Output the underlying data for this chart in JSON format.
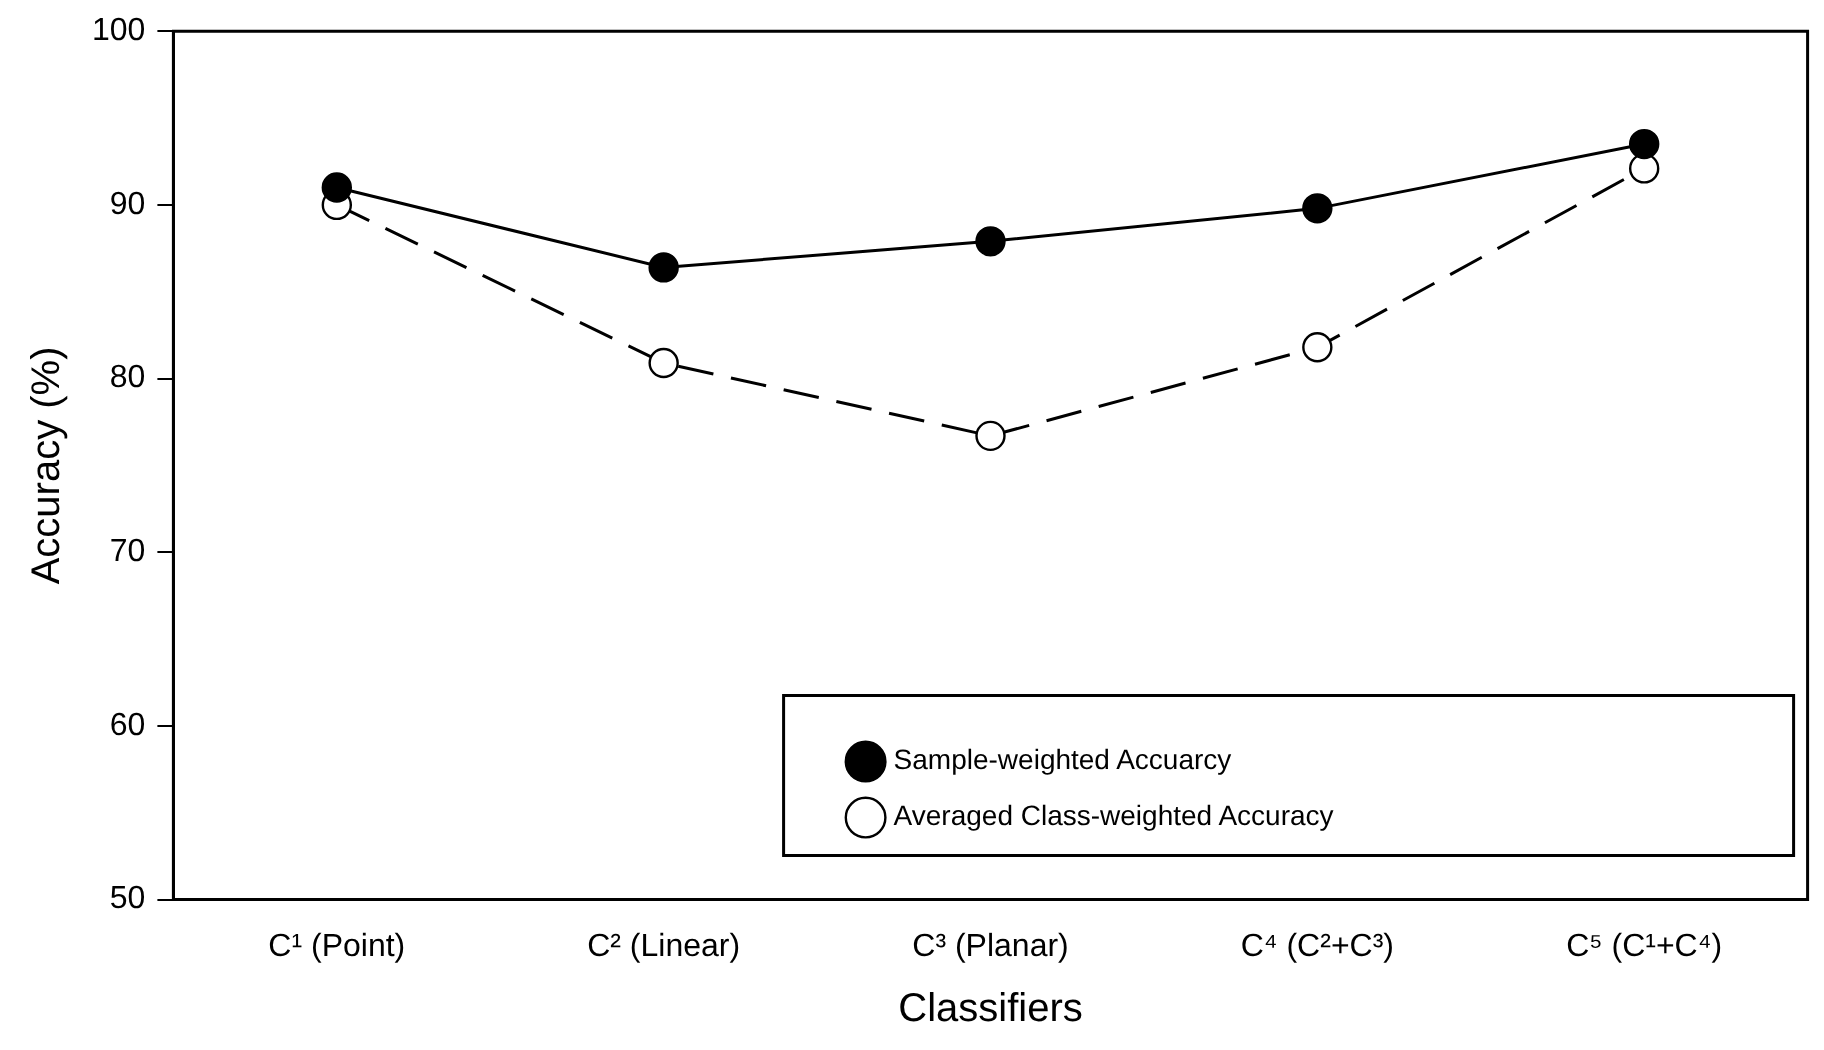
{
  "chart_data": {
    "type": "line",
    "xlabel": "Classifiers",
    "ylabel": "Accuracy (%)",
    "categories": [
      "C¹ (Point)",
      "C² (Linear)",
      "C³ (Planar)",
      "C⁴ (C²+C³)",
      "C⁵ (C¹+C⁴)"
    ],
    "series": [
      {
        "name": "Sample-weighted Accuarcy",
        "color": "#000000",
        "values": [
          91.0,
          86.4,
          87.9,
          89.8,
          93.5
        ],
        "marker": "circle",
        "line_style": "solid"
      },
      {
        "name": "Averaged Class-weighted Accuracy",
        "color": "#000000",
        "values": [
          90.0,
          80.9,
          76.7,
          81.8,
          92.1
        ],
        "marker": "circle",
        "line_style": "dashed"
      }
    ],
    "ylim": [
      50,
      100
    ],
    "yticks": [
      50,
      60,
      70,
      80,
      90,
      100
    ],
    "grid": false,
    "legend": "bottom right"
  }
}
